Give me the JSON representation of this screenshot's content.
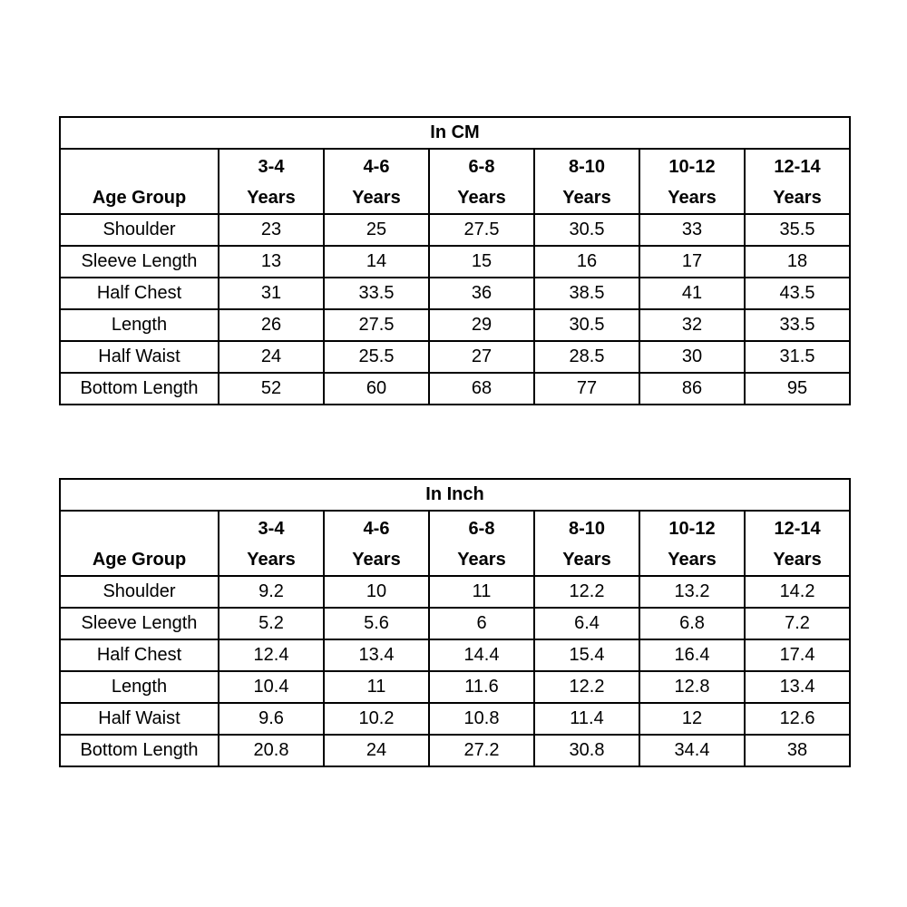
{
  "page": {
    "background": "#ffffff",
    "border_color": "#000000",
    "text_color": "#000000"
  },
  "tables": [
    {
      "id": "cm",
      "title": "In CM",
      "corner_label": "Age Group",
      "columns": [
        {
          "line1": "3-4",
          "line2": "Years"
        },
        {
          "line1": "4-6",
          "line2": "Years"
        },
        {
          "line1": "6-8",
          "line2": "Years"
        },
        {
          "line1": "8-10",
          "line2": "Years"
        },
        {
          "line1": "10-12",
          "line2": "Years"
        },
        {
          "line1": "12-14",
          "line2": "Years"
        }
      ],
      "rows": [
        {
          "label": "Shoulder",
          "values": [
            "23",
            "25",
            "27.5",
            "30.5",
            "33",
            "35.5"
          ]
        },
        {
          "label": "Sleeve Length",
          "values": [
            "13",
            "14",
            "15",
            "16",
            "17",
            "18"
          ]
        },
        {
          "label": "Half Chest",
          "values": [
            "31",
            "33.5",
            "36",
            "38.5",
            "41",
            "43.5"
          ]
        },
        {
          "label": "Length",
          "values": [
            "26",
            "27.5",
            "29",
            "30.5",
            "32",
            "33.5"
          ]
        },
        {
          "label": "Half Waist",
          "values": [
            "24",
            "25.5",
            "27",
            "28.5",
            "30",
            "31.5"
          ]
        },
        {
          "label": "Bottom Length",
          "values": [
            "52",
            "60",
            "68",
            "77",
            "86",
            "95"
          ]
        }
      ]
    },
    {
      "id": "inch",
      "title": "In Inch",
      "corner_label": "Age Group",
      "columns": [
        {
          "line1": "3-4",
          "line2": "Years"
        },
        {
          "line1": "4-6",
          "line2": "Years"
        },
        {
          "line1": "6-8",
          "line2": "Years"
        },
        {
          "line1": "8-10",
          "line2": "Years"
        },
        {
          "line1": "10-12",
          "line2": "Years"
        },
        {
          "line1": "12-14",
          "line2": "Years"
        }
      ],
      "rows": [
        {
          "label": "Shoulder",
          "values": [
            "9.2",
            "10",
            "11",
            "12.2",
            "13.2",
            "14.2"
          ]
        },
        {
          "label": "Sleeve Length",
          "values": [
            "5.2",
            "5.6",
            "6",
            "6.4",
            "6.8",
            "7.2"
          ]
        },
        {
          "label": "Half Chest",
          "values": [
            "12.4",
            "13.4",
            "14.4",
            "15.4",
            "16.4",
            "17.4"
          ]
        },
        {
          "label": "Length",
          "values": [
            "10.4",
            "11",
            "11.6",
            "12.2",
            "12.8",
            "13.4"
          ]
        },
        {
          "label": "Half Waist",
          "values": [
            "9.6",
            "10.2",
            "10.8",
            "11.4",
            "12",
            "12.6"
          ]
        },
        {
          "label": "Bottom Length",
          "values": [
            "20.8",
            "24",
            "27.2",
            "30.8",
            "34.4",
            "38"
          ]
        }
      ]
    }
  ],
  "chart_data": [
    {
      "type": "table",
      "title": "In CM",
      "columns": [
        "Age Group",
        "3-4 Years",
        "4-6 Years",
        "6-8 Years",
        "8-10 Years",
        "10-12 Years",
        "12-14 Years"
      ],
      "rows": [
        [
          "Shoulder",
          23,
          25,
          27.5,
          30.5,
          33,
          35.5
        ],
        [
          "Sleeve Length",
          13,
          14,
          15,
          16,
          17,
          18
        ],
        [
          "Half Chest",
          31,
          33.5,
          36,
          38.5,
          41,
          43.5
        ],
        [
          "Length",
          26,
          27.5,
          29,
          30.5,
          32,
          33.5
        ],
        [
          "Half Waist",
          24,
          25.5,
          27,
          28.5,
          30,
          31.5
        ],
        [
          "Bottom Length",
          52,
          60,
          68,
          77,
          86,
          95
        ]
      ]
    },
    {
      "type": "table",
      "title": "In Inch",
      "columns": [
        "Age Group",
        "3-4 Years",
        "4-6 Years",
        "6-8 Years",
        "8-10 Years",
        "10-12 Years",
        "12-14 Years"
      ],
      "rows": [
        [
          "Shoulder",
          9.2,
          10,
          11,
          12.2,
          13.2,
          14.2
        ],
        [
          "Sleeve Length",
          5.2,
          5.6,
          6,
          6.4,
          6.8,
          7.2
        ],
        [
          "Half Chest",
          12.4,
          13.4,
          14.4,
          15.4,
          16.4,
          17.4
        ],
        [
          "Length",
          10.4,
          11,
          11.6,
          12.2,
          12.8,
          13.4
        ],
        [
          "Half Waist",
          9.6,
          10.2,
          10.8,
          11.4,
          12,
          12.6
        ],
        [
          "Bottom Length",
          20.8,
          24,
          27.2,
          30.8,
          34.4,
          38
        ]
      ]
    }
  ]
}
